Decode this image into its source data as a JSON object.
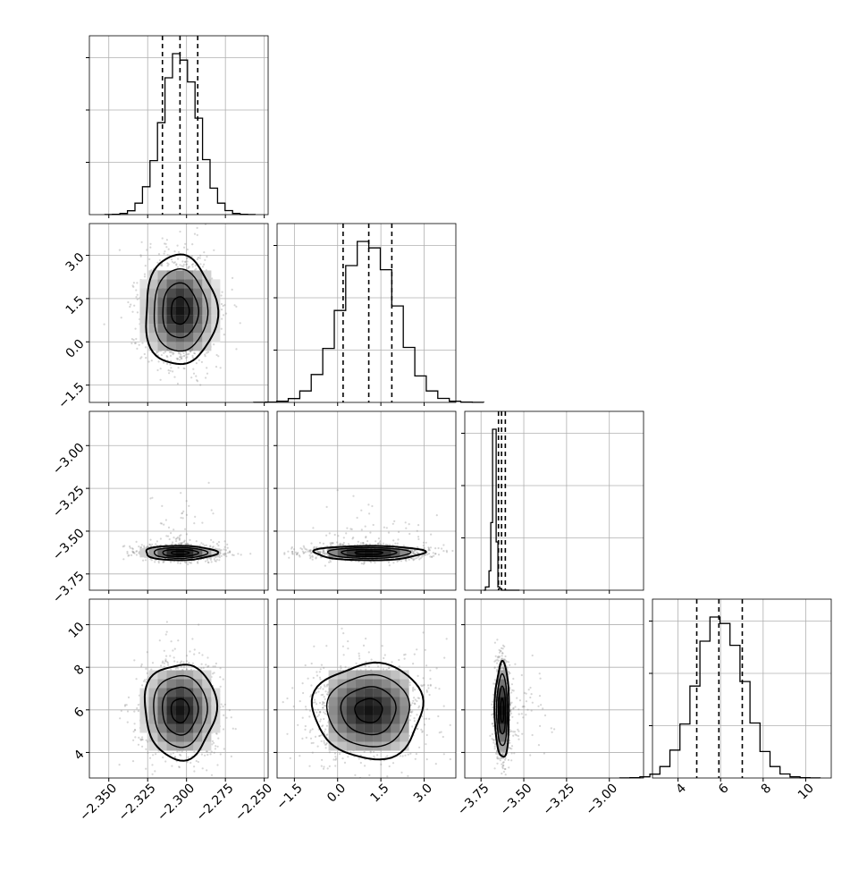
{
  "chart_data": {
    "type": "corner",
    "parameters": 4,
    "axes": [
      {
        "index": 0,
        "range": [
          -2.3625,
          -2.2475
        ],
        "ticks": [
          -2.35,
          -2.325,
          -2.3,
          -2.275,
          -2.25
        ],
        "tick_labels": [
          "−2.350",
          "−2.325",
          "−2.300",
          "−2.275",
          "−2.250"
        ]
      },
      {
        "index": 1,
        "range": [
          -2.1,
          4.1
        ],
        "ticks": [
          -1.5,
          0.0,
          1.5,
          3.0
        ],
        "tick_labels": [
          "−1.5",
          "0.0",
          "1.5",
          "3.0"
        ]
      },
      {
        "index": 2,
        "range": [
          -3.845,
          -2.8
        ],
        "ticks": [
          -3.75,
          -3.5,
          -3.25,
          -3.0
        ],
        "tick_labels": [
          "−3.75",
          "−3.50",
          "−3.25",
          "−3.00"
        ]
      },
      {
        "index": 3,
        "range": [
          2.8,
          11.2
        ],
        "ticks": [
          4,
          6,
          8,
          10
        ],
        "tick_labels": [
          "4",
          "6",
          "8",
          "10"
        ]
      }
    ],
    "marginals": [
      {
        "index": 0,
        "mean": -2.3042,
        "sigma": 0.0115,
        "quantiles": [
          -2.3155,
          -2.3042,
          -2.2928
        ]
      },
      {
        "index": 1,
        "mean": 1.08,
        "sigma": 0.95,
        "quantiles": [
          0.19,
          1.08,
          1.88
        ]
      },
      {
        "index": 2,
        "mean": -3.627,
        "sigma": 0.021,
        "quantiles": [
          -3.648,
          -3.63,
          -3.608
        ]
      },
      {
        "index": 3,
        "mean": 5.97,
        "sigma": 1.12,
        "quantiles": [
          4.88,
          5.92,
          7.02
        ]
      }
    ],
    "grid": true,
    "histogram_bins": 20,
    "contour_levels": [
      "0.5",
      "1.0",
      "1.5",
      "2.0"
    ]
  }
}
